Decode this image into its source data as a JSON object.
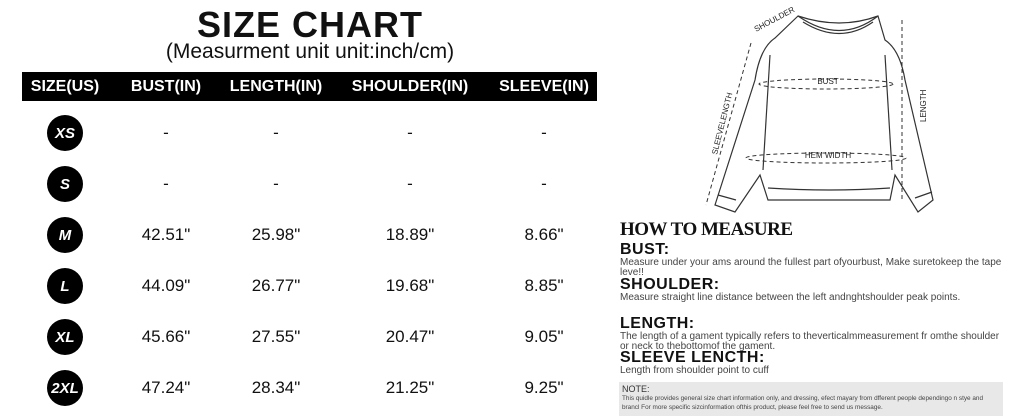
{
  "title": "SIZE CHART",
  "subtitle": "(Measurment unit unit:inch/cm)",
  "headers": [
    "SIZE(US)",
    "BUST(IN)",
    "LENGTH(IN)",
    "SHOULDER(IN)",
    "SLEEVE(IN)"
  ],
  "rows": [
    {
      "size": "XS",
      "bust": "-",
      "length": "-",
      "shoulder": "-",
      "sleeve": "-"
    },
    {
      "size": "S",
      "bust": "-",
      "length": "-",
      "shoulder": "-",
      "sleeve": "-"
    },
    {
      "size": "M",
      "bust": "42.51\"",
      "length": "25.98\"",
      "shoulder": "18.89\"",
      "sleeve": "8.66\""
    },
    {
      "size": "L",
      "bust": "44.09\"",
      "length": "26.77\"",
      "shoulder": "19.68\"",
      "sleeve": "8.85\""
    },
    {
      "size": "XL",
      "bust": "45.66\"",
      "length": "27.55\"",
      "shoulder": "20.47\"",
      "sleeve": "9.05\""
    },
    {
      "size": "2XL",
      "bust": "47.24\"",
      "length": "28.34\"",
      "shoulder": "21.25\"",
      "sleeve": "9.25\""
    }
  ],
  "diagram": {
    "shoulder": "SHOULDER",
    "bust": "BUST",
    "sleeve": "SLEEVELENGTH",
    "length": "LENGTH",
    "hem": "HEM WIDTH"
  },
  "howto": {
    "title": "HOW TO MEASURE",
    "sections": [
      {
        "h": "BUST:",
        "t": "Measure under your ams around the fullest part ofyourbust, Make suretokeep the tape leve!!"
      },
      {
        "h": "SHOULDER:",
        "t": "Measure straight line distance between the left andnghtshoulder peak points."
      },
      {
        "h": "LENGTH:",
        "t": "The length of a gament typically refers to theverticalmmeasurement fr omthe shoulder or neck to thebottomof the gament."
      },
      {
        "h": "SLEEVE LENCTH:",
        "t": "Length from shoulder point to cuff"
      }
    ],
    "note_title": "NOTE:",
    "note": "This quidle provides general size chart information only, and dressing, efect mayary from dfferent people dependingo n stye and brancl For more specific sizcinformation ofthis product, please feel free to send us message."
  }
}
